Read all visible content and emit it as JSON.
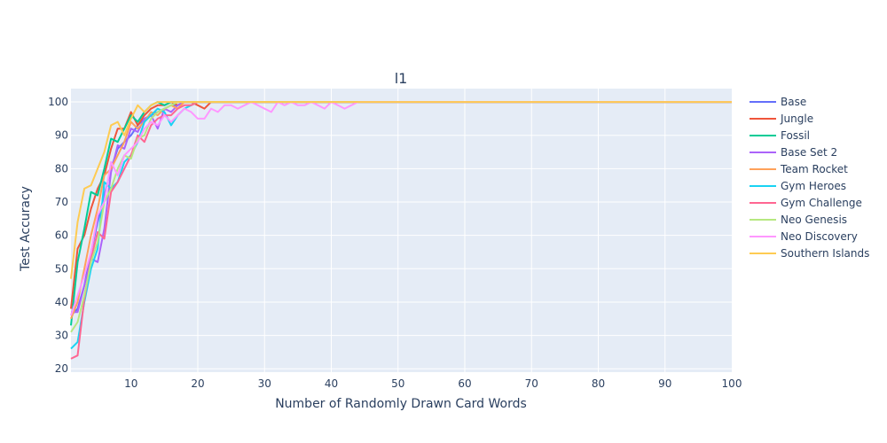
{
  "chart_data": {
    "type": "line",
    "title": "l1",
    "xlabel": "Number of Randomly Drawn Card Words",
    "ylabel": "Test Accuracy",
    "xlim": [
      1,
      100
    ],
    "ylim": [
      19,
      104
    ],
    "x_ticks": [
      10,
      20,
      30,
      40,
      50,
      60,
      70,
      80,
      90,
      100
    ],
    "y_ticks": [
      20,
      30,
      40,
      50,
      60,
      70,
      80,
      90,
      100
    ],
    "grid": true,
    "legend_position": "right",
    "background": "#e5ecf6",
    "series": [
      {
        "name": "Base",
        "color": "#636efa",
        "points": [
          [
            1,
            36
          ],
          [
            2,
            38
          ],
          [
            3,
            45
          ],
          [
            4,
            55
          ],
          [
            5,
            64
          ],
          [
            6,
            72
          ],
          [
            7,
            80
          ],
          [
            8,
            86
          ],
          [
            9,
            88
          ],
          [
            10,
            90
          ],
          [
            11,
            93
          ],
          [
            12,
            95
          ],
          [
            13,
            96
          ],
          [
            14,
            97
          ],
          [
            15,
            98
          ],
          [
            16,
            99
          ],
          [
            17,
            99
          ],
          [
            18,
            100
          ],
          [
            19,
            100
          ],
          [
            20,
            100
          ],
          [
            100,
            100
          ]
        ]
      },
      {
        "name": "Jungle",
        "color": "#ef553b",
        "points": [
          [
            1,
            38
          ],
          [
            2,
            56
          ],
          [
            3,
            60
          ],
          [
            4,
            68
          ],
          [
            5,
            74
          ],
          [
            6,
            78
          ],
          [
            7,
            86
          ],
          [
            8,
            92
          ],
          [
            9,
            92
          ],
          [
            10,
            97
          ],
          [
            11,
            93
          ],
          [
            12,
            96
          ],
          [
            13,
            98
          ],
          [
            14,
            99
          ],
          [
            15,
            99
          ],
          [
            16,
            100
          ],
          [
            17,
            99
          ],
          [
            18,
            100
          ],
          [
            19,
            100
          ],
          [
            20,
            99
          ],
          [
            21,
            98
          ],
          [
            22,
            100
          ],
          [
            23,
            100
          ],
          [
            100,
            100
          ]
        ]
      },
      {
        "name": "Fossil",
        "color": "#00cc96",
        "points": [
          [
            1,
            33
          ],
          [
            2,
            52
          ],
          [
            3,
            62
          ],
          [
            4,
            73
          ],
          [
            5,
            72
          ],
          [
            6,
            80
          ],
          [
            7,
            89
          ],
          [
            8,
            88
          ],
          [
            9,
            92
          ],
          [
            10,
            96
          ],
          [
            11,
            94
          ],
          [
            12,
            97
          ],
          [
            13,
            99
          ],
          [
            14,
            100
          ],
          [
            15,
            99
          ],
          [
            16,
            100
          ],
          [
            17,
            100
          ],
          [
            18,
            100
          ],
          [
            100,
            100
          ]
        ]
      },
      {
        "name": "Base Set 2",
        "color": "#ab63fa",
        "points": [
          [
            1,
            37
          ],
          [
            2,
            37
          ],
          [
            3,
            45
          ],
          [
            4,
            53
          ],
          [
            5,
            52
          ],
          [
            6,
            62
          ],
          [
            7,
            79
          ],
          [
            8,
            87
          ],
          [
            9,
            86
          ],
          [
            10,
            92
          ],
          [
            11,
            91
          ],
          [
            12,
            95
          ],
          [
            13,
            96
          ],
          [
            14,
            92
          ],
          [
            15,
            98
          ],
          [
            16,
            97
          ],
          [
            17,
            99
          ],
          [
            18,
            100
          ],
          [
            19,
            100
          ],
          [
            20,
            100
          ],
          [
            100,
            100
          ]
        ]
      },
      {
        "name": "Team Rocket",
        "color": "#ffa15a",
        "points": [
          [
            1,
            35
          ],
          [
            2,
            40
          ],
          [
            3,
            50
          ],
          [
            4,
            60
          ],
          [
            5,
            68
          ],
          [
            6,
            78
          ],
          [
            7,
            80
          ],
          [
            8,
            84
          ],
          [
            9,
            88
          ],
          [
            10,
            94
          ],
          [
            11,
            92
          ],
          [
            12,
            94
          ],
          [
            13,
            97
          ],
          [
            14,
            96
          ],
          [
            15,
            98
          ],
          [
            16,
            99
          ],
          [
            17,
            98
          ],
          [
            18,
            100
          ],
          [
            19,
            100
          ],
          [
            20,
            100
          ],
          [
            25,
            100
          ],
          [
            100,
            100
          ]
        ]
      },
      {
        "name": "Gym Heroes",
        "color": "#19d3f3",
        "points": [
          [
            1,
            26
          ],
          [
            2,
            28
          ],
          [
            3,
            40
          ],
          [
            4,
            50
          ],
          [
            5,
            56
          ],
          [
            6,
            76
          ],
          [
            7,
            74
          ],
          [
            8,
            76
          ],
          [
            9,
            82
          ],
          [
            10,
            84
          ],
          [
            11,
            88
          ],
          [
            12,
            94
          ],
          [
            13,
            96
          ],
          [
            14,
            98
          ],
          [
            15,
            97
          ],
          [
            16,
            93
          ],
          [
            17,
            96
          ],
          [
            18,
            98
          ],
          [
            19,
            99
          ],
          [
            20,
            100
          ],
          [
            22,
            100
          ],
          [
            100,
            100
          ]
        ]
      },
      {
        "name": "Gym Challenge",
        "color": "#ff6692",
        "points": [
          [
            1,
            23
          ],
          [
            2,
            24
          ],
          [
            3,
            41
          ],
          [
            4,
            53
          ],
          [
            5,
            61
          ],
          [
            6,
            59
          ],
          [
            7,
            73
          ],
          [
            8,
            76
          ],
          [
            9,
            80
          ],
          [
            10,
            84
          ],
          [
            11,
            90
          ],
          [
            12,
            88
          ],
          [
            13,
            93
          ],
          [
            14,
            95
          ],
          [
            15,
            96
          ],
          [
            16,
            96
          ],
          [
            17,
            98
          ],
          [
            18,
            99
          ],
          [
            19,
            99
          ],
          [
            20,
            100
          ],
          [
            22,
            100
          ],
          [
            100,
            100
          ]
        ]
      },
      {
        "name": "Neo Genesis",
        "color": "#b6e880",
        "points": [
          [
            1,
            31
          ],
          [
            2,
            34
          ],
          [
            3,
            42
          ],
          [
            4,
            52
          ],
          [
            5,
            58
          ],
          [
            6,
            70
          ],
          [
            7,
            74
          ],
          [
            8,
            80
          ],
          [
            9,
            84
          ],
          [
            10,
            83
          ],
          [
            11,
            89
          ],
          [
            12,
            90
          ],
          [
            13,
            95
          ],
          [
            14,
            97
          ],
          [
            15,
            98
          ],
          [
            16,
            99
          ],
          [
            17,
            100
          ],
          [
            18,
            100
          ],
          [
            100,
            100
          ]
        ]
      },
      {
        "name": "Neo Discovery",
        "color": "#ff97ff",
        "points": [
          [
            1,
            36
          ],
          [
            2,
            42
          ],
          [
            3,
            48
          ],
          [
            4,
            55
          ],
          [
            5,
            66
          ],
          [
            6,
            70
          ],
          [
            7,
            82
          ],
          [
            8,
            78
          ],
          [
            9,
            84
          ],
          [
            10,
            86
          ],
          [
            11,
            88
          ],
          [
            12,
            92
          ],
          [
            13,
            94
          ],
          [
            14,
            93
          ],
          [
            15,
            96
          ],
          [
            16,
            94
          ],
          [
            17,
            96
          ],
          [
            18,
            98
          ],
          [
            19,
            97
          ],
          [
            20,
            95
          ],
          [
            21,
            95
          ],
          [
            22,
            98
          ],
          [
            23,
            97
          ],
          [
            24,
            99
          ],
          [
            25,
            99
          ],
          [
            26,
            98
          ],
          [
            27,
            99
          ],
          [
            28,
            100
          ],
          [
            29,
            99
          ],
          [
            30,
            98
          ],
          [
            31,
            97
          ],
          [
            32,
            100
          ],
          [
            33,
            99
          ],
          [
            34,
            100
          ],
          [
            35,
            99
          ],
          [
            36,
            99
          ],
          [
            37,
            100
          ],
          [
            38,
            99
          ],
          [
            39,
            98
          ],
          [
            40,
            100
          ],
          [
            41,
            99
          ],
          [
            42,
            98
          ],
          [
            43,
            99
          ],
          [
            44,
            100
          ],
          [
            100,
            100
          ]
        ]
      },
      {
        "name": "Southern Islands",
        "color": "#fecb52",
        "points": [
          [
            1,
            47
          ],
          [
            2,
            64
          ],
          [
            3,
            74
          ],
          [
            4,
            75
          ],
          [
            5,
            80
          ],
          [
            6,
            85
          ],
          [
            7,
            93
          ],
          [
            8,
            94
          ],
          [
            9,
            90
          ],
          [
            10,
            95
          ],
          [
            11,
            99
          ],
          [
            12,
            97
          ],
          [
            13,
            99
          ],
          [
            14,
            100
          ],
          [
            15,
            100
          ],
          [
            16,
            100
          ],
          [
            100,
            100
          ]
        ]
      }
    ]
  }
}
